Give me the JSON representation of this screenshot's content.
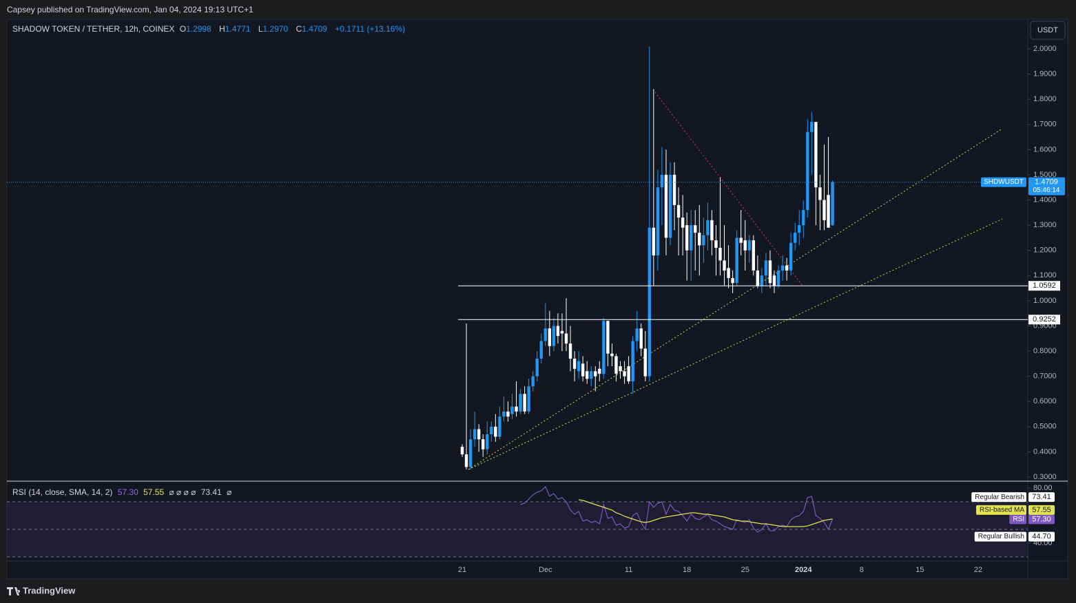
{
  "page": {
    "published": "Capsey published on TradingView.com, Jan 04, 2024 19:13 UTC+1",
    "brand": "TradingView",
    "currency_button": "USDT"
  },
  "chart_data": [
    {
      "type": "candlestick",
      "title": "SHADOW TOKEN / TETHER, 12h, COINEX",
      "ohlc_header": [
        {
          "key": "O",
          "label": "1.2998"
        },
        {
          "key": "H",
          "label": "1.4771"
        },
        {
          "key": "L",
          "label": "1.2970"
        },
        {
          "key": "C",
          "label": "1.4709"
        }
      ],
      "change": "+0.1711 (+13.16%)",
      "symbol": "SHDWUSDT",
      "countdown": "05:46:14",
      "up_color": "#2196f3",
      "down_color": "#ffffff",
      "grid": false,
      "categories": [
        "21",
        null,
        null,
        null,
        null,
        null,
        null,
        null,
        null,
        null,
        null,
        null,
        null,
        null,
        null,
        null,
        null,
        null,
        null,
        null,
        "Dec",
        null,
        null,
        null,
        null,
        null,
        null,
        null,
        null,
        null,
        null,
        null,
        null,
        null,
        null,
        null,
        null,
        null,
        null,
        null,
        "11",
        null,
        null,
        null,
        null,
        null,
        null,
        null,
        null,
        null,
        null,
        null,
        null,
        null,
        "18",
        null,
        null,
        null,
        null,
        null,
        null,
        null,
        null,
        null,
        null,
        null,
        null,
        null,
        "25",
        null,
        null,
        null,
        null,
        null,
        null,
        null,
        null,
        null,
        null,
        null,
        null,
        null,
        "2024",
        null,
        null,
        null,
        null,
        null,
        null,
        null,
        null,
        null,
        null,
        null,
        null,
        null,
        "8",
        null,
        null,
        null,
        null,
        null,
        null,
        null,
        null,
        null,
        null,
        null,
        null,
        null,
        "15",
        null,
        null,
        null,
        null,
        null,
        null,
        null,
        null,
        null,
        null,
        null,
        null,
        null,
        "22"
      ],
      "open": [
        0.42,
        0.39,
        0.34,
        0.45,
        0.49,
        0.45,
        0.41,
        0.47,
        0.5,
        0.46,
        0.54,
        0.56,
        0.55,
        0.58,
        0.56,
        0.63,
        0.56,
        0.66,
        0.7,
        0.77,
        0.84,
        0.89,
        0.82,
        0.9,
        0.88,
        0.87,
        0.83,
        0.77,
        0.72,
        0.75,
        0.72,
        0.69,
        0.72,
        0.73,
        0.71,
        0.92,
        0.79,
        0.78,
        0.74,
        0.72,
        0.74,
        0.68,
        0.84,
        0.89,
        0.81,
        0.7,
        1.29,
        1.18,
        1.45,
        1.5,
        1.25,
        1.5,
        1.38,
        1.33,
        1.3,
        1.2,
        1.3,
        1.27,
        1.22,
        1.26,
        1.32,
        1.24,
        1.21,
        1.16,
        1.13,
        1.09,
        1.07,
        1.25,
        1.24,
        1.2,
        1.24,
        1.12,
        1.06,
        1.1,
        1.16,
        1.1,
        1.06,
        1.12,
        1.14,
        1.12,
        1.23,
        1.27,
        1.3,
        1.36,
        1.67,
        1.71,
        1.45,
        1.4,
        1.42,
        1.2998,
        null,
        null,
        null,
        null,
        null,
        null,
        null,
        null,
        null,
        null,
        null,
        null,
        null,
        null,
        null,
        null,
        null,
        null,
        null,
        null,
        null,
        null,
        null,
        null,
        null,
        null,
        null,
        null,
        null,
        null,
        null,
        null,
        null,
        null,
        null
      ],
      "high": [
        0.43,
        0.91,
        0.49,
        0.56,
        0.51,
        0.47,
        0.52,
        0.52,
        0.55,
        0.58,
        0.62,
        0.6,
        0.63,
        0.68,
        0.65,
        0.66,
        0.69,
        0.72,
        0.8,
        0.87,
        0.99,
        0.96,
        0.93,
        0.95,
        0.95,
        1.01,
        0.9,
        0.8,
        0.8,
        0.78,
        0.76,
        0.74,
        0.74,
        0.76,
        0.93,
        0.92,
        0.83,
        0.79,
        0.76,
        0.76,
        0.78,
        0.86,
        0.96,
        0.91,
        0.88,
        2.01,
        1.84,
        1.52,
        1.61,
        1.6,
        1.55,
        1.55,
        1.45,
        1.42,
        1.35,
        1.36,
        1.36,
        1.38,
        1.33,
        1.39,
        1.36,
        1.3,
        1.49,
        1.3,
        1.22,
        1.12,
        1.28,
        1.36,
        1.32,
        1.26,
        1.26,
        1.18,
        1.13,
        1.19,
        1.2,
        1.12,
        1.14,
        1.18,
        1.17,
        1.27,
        1.31,
        1.36,
        1.4,
        1.72,
        1.75,
        1.71,
        1.5,
        1.62,
        1.65,
        1.4771,
        null,
        null,
        null,
        null,
        null,
        null,
        null,
        null,
        null,
        null,
        null,
        null,
        null,
        null,
        null,
        null,
        null,
        null,
        null,
        null,
        null,
        null,
        null,
        null,
        null,
        null,
        null,
        null,
        null,
        null,
        null,
        null,
        null,
        null,
        null
      ],
      "low": [
        0.38,
        0.33,
        0.33,
        0.42,
        0.4,
        0.38,
        0.39,
        0.44,
        0.44,
        0.45,
        0.52,
        0.52,
        0.53,
        0.54,
        0.55,
        0.55,
        0.55,
        0.64,
        0.68,
        0.75,
        0.82,
        0.78,
        0.8,
        0.83,
        0.8,
        0.8,
        0.72,
        0.68,
        0.69,
        0.68,
        0.67,
        0.66,
        0.64,
        0.68,
        0.69,
        0.74,
        0.74,
        0.68,
        0.69,
        0.67,
        0.67,
        0.63,
        0.8,
        0.78,
        0.68,
        0.68,
        1.06,
        1.12,
        1.3,
        1.18,
        1.22,
        1.28,
        1.18,
        1.18,
        1.08,
        1.08,
        1.12,
        1.1,
        1.15,
        1.2,
        1.18,
        1.1,
        1.1,
        1.06,
        1.05,
        1.03,
        1.06,
        1.18,
        1.12,
        1.15,
        1.1,
        1.05,
        1.03,
        1.06,
        1.05,
        1.03,
        1.05,
        1.08,
        1.08,
        1.1,
        1.2,
        1.22,
        1.25,
        1.33,
        1.5,
        1.3,
        1.28,
        1.28,
        1.29,
        1.297,
        null,
        null,
        null,
        null,
        null,
        null,
        null,
        null,
        null,
        null,
        null,
        null,
        null,
        null,
        null,
        null,
        null,
        null,
        null,
        null,
        null,
        null,
        null,
        null,
        null,
        null,
        null,
        null,
        null,
        null,
        null,
        null,
        null,
        null,
        null
      ],
      "close": [
        0.39,
        0.34,
        0.45,
        0.49,
        0.45,
        0.41,
        0.47,
        0.5,
        0.46,
        0.54,
        0.56,
        0.54,
        0.58,
        0.56,
        0.63,
        0.56,
        0.66,
        0.7,
        0.77,
        0.84,
        0.89,
        0.82,
        0.9,
        0.86,
        0.87,
        0.83,
        0.77,
        0.73,
        0.76,
        0.7,
        0.69,
        0.72,
        0.7,
        0.71,
        0.92,
        0.79,
        0.78,
        0.71,
        0.72,
        0.7,
        0.68,
        0.84,
        0.89,
        0.81,
        0.7,
        1.29,
        1.18,
        1.45,
        1.5,
        1.25,
        1.5,
        1.38,
        1.33,
        1.29,
        1.2,
        1.3,
        1.27,
        1.22,
        1.26,
        1.32,
        1.24,
        1.21,
        1.16,
        1.12,
        1.09,
        1.07,
        1.25,
        1.23,
        1.2,
        1.24,
        1.12,
        1.06,
        1.1,
        1.16,
        1.07,
        1.06,
        1.12,
        1.14,
        1.12,
        1.23,
        1.27,
        1.3,
        1.36,
        1.67,
        1.71,
        1.45,
        1.4,
        1.32,
        1.29,
        1.4709,
        null,
        null,
        null,
        null,
        null,
        null,
        null,
        null,
        null,
        null,
        null,
        null,
        null,
        null,
        null,
        null,
        null,
        null,
        null,
        null,
        null,
        null,
        null,
        null,
        null,
        null,
        null,
        null,
        null,
        null,
        null,
        null,
        null,
        null,
        null
      ],
      "ylim": [
        0.2836,
        2.1121
      ],
      "yticks": [
        {
          "value": 0.3,
          "label": "0.3000"
        },
        {
          "value": 0.4,
          "label": "0.4000"
        },
        {
          "value": 0.5,
          "label": "0.5000"
        },
        {
          "value": 0.6,
          "label": "0.6000"
        },
        {
          "value": 0.7,
          "label": "0.7000"
        },
        {
          "value": 0.8,
          "label": "0.8000"
        },
        {
          "value": 0.9,
          "label": "0.9000"
        },
        {
          "value": 1.0,
          "label": "1.0000"
        },
        {
          "value": 1.1,
          "label": "1.1000"
        },
        {
          "value": 1.2,
          "label": "1.2000"
        },
        {
          "value": 1.3,
          "label": "1.3000"
        },
        {
          "value": 1.4,
          "label": "1.4000"
        },
        {
          "value": 1.5,
          "label": "1.5000"
        },
        {
          "value": 1.6,
          "label": "1.6000"
        },
        {
          "value": 1.7,
          "label": "1.7000"
        },
        {
          "value": 1.8,
          "label": "1.8000"
        },
        {
          "value": 1.9,
          "label": "1.9000"
        },
        {
          "value": 2.0,
          "label": "2.0000"
        }
      ],
      "hlines": [
        1.0592,
        0.9252
      ]
    },
    {
      "type": "line",
      "title": "RSI (14, close, SMA, 14, 2)",
      "header_placeholders": "⌀ ⌀ ⌀ ⌀",
      "header_trailing": "⌀",
      "series": [
        {
          "name": "RSI",
          "color": "#7e57c2",
          "last_label": "57.30",
          "values": [
            null,
            null,
            null,
            null,
            null,
            null,
            null,
            null,
            null,
            null,
            null,
            null,
            null,
            null,
            68,
            69,
            72,
            75,
            77,
            78,
            81,
            74,
            76,
            72,
            73,
            70,
            64,
            61,
            63,
            56,
            57,
            55,
            56,
            54,
            68,
            58,
            59,
            53,
            54,
            51,
            52,
            60,
            62,
            55,
            50,
            70,
            66,
            69,
            70,
            61,
            68,
            64,
            63,
            60,
            56,
            61,
            58,
            57,
            59,
            61,
            57,
            56,
            54,
            52,
            51,
            50,
            57,
            56,
            55,
            57,
            51,
            48,
            50,
            54,
            49,
            49,
            52,
            53,
            52,
            57,
            59,
            60,
            63,
            73,
            74,
            60,
            58,
            55,
            50,
            57.3,
            null,
            null,
            null,
            null,
            null,
            null,
            null,
            null,
            null,
            null,
            null,
            null,
            null,
            null,
            null,
            null,
            null,
            null,
            null,
            null,
            null,
            null,
            null,
            null,
            null,
            null,
            null,
            null,
            null,
            null,
            null,
            null,
            null,
            null,
            null
          ]
        },
        {
          "name": "RSI-based MA",
          "color": "#e3e34f",
          "last_label": "57.55",
          "values": [
            null,
            null,
            null,
            null,
            null,
            null,
            null,
            null,
            null,
            null,
            null,
            null,
            null,
            null,
            null,
            null,
            null,
            null,
            null,
            null,
            null,
            null,
            null,
            null,
            null,
            null,
            null,
            null,
            71.5,
            71,
            70,
            69,
            68,
            67,
            66,
            65,
            64,
            62,
            61,
            59.5,
            58.5,
            57.5,
            56.5,
            55.5,
            55,
            55.5,
            56.5,
            57.5,
            58.5,
            59,
            59.5,
            60,
            60.5,
            61,
            61.5,
            62,
            62,
            61.5,
            61,
            61,
            60.5,
            60,
            59.5,
            59,
            58,
            57,
            56.5,
            56,
            56,
            55.5,
            55,
            54.5,
            54,
            54,
            53.5,
            53,
            52.5,
            52,
            52,
            52,
            52,
            52,
            52,
            52.5,
            53.5,
            54.5,
            55.5,
            56.5,
            57,
            57.55,
            null,
            null,
            null,
            null,
            null,
            null,
            null,
            null,
            null,
            null,
            null,
            null,
            null,
            null,
            null,
            null,
            null,
            null,
            null,
            null,
            null,
            null,
            null,
            null,
            null,
            null,
            null,
            null,
            null,
            null,
            null,
            null,
            null,
            null,
            null
          ]
        }
      ],
      "divergences": [
        {
          "name": "Regular Bearish",
          "value": 73.41,
          "label": "73.41"
        },
        {
          "name": "Regular Bullish",
          "value": 44.7,
          "label": "44.70"
        }
      ],
      "levels": [
        70,
        50,
        30
      ],
      "ylim": [
        27,
        84.5
      ],
      "yticks": [
        {
          "value": 80,
          "label": "80.00"
        },
        {
          "value": 40,
          "label": "40.00"
        }
      ]
    }
  ]
}
